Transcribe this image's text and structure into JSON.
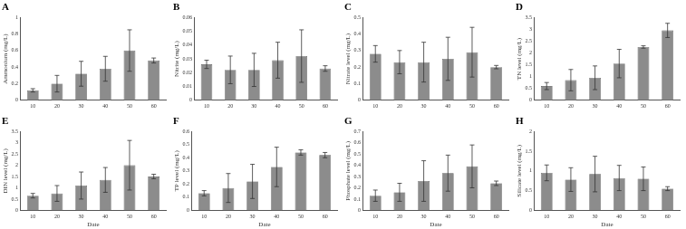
{
  "chart_data": [
    {
      "type": "bar",
      "title": "A",
      "y_label": "Ammonium (mg/L)",
      "categories": [
        "10",
        "20",
        "30",
        "40",
        "50",
        "60"
      ],
      "values": [
        0.12,
        0.2,
        0.32,
        0.38,
        0.6,
        0.48
      ],
      "errors": [
        0.02,
        0.1,
        0.15,
        0.15,
        0.25,
        0.03
      ],
      "color": "#8c8c8c",
      "ylim": [
        0,
        1
      ],
      "yticks": [
        0,
        0.2,
        0.4,
        0.6,
        0.8,
        1
      ],
      "grid": false
    },
    {
      "type": "bar",
      "title": "B",
      "y_label": "Nitrite (mg/L)",
      "categories": [
        "10",
        "20",
        "30",
        "40",
        "50",
        "60"
      ],
      "values": [
        0.026,
        0.022,
        0.022,
        0.029,
        0.032,
        0.023
      ],
      "errors": [
        0.003,
        0.01,
        0.012,
        0.013,
        0.019,
        0.002
      ],
      "color": "#8c8c8c",
      "ylim": [
        0,
        0.06
      ],
      "yticks": [
        0,
        0.01,
        0.02,
        0.03,
        0.04,
        0.05,
        0.06
      ],
      "grid": false
    },
    {
      "type": "bar",
      "title": "C",
      "y_label": "Nitrate level (mg/L)",
      "categories": [
        "10",
        "20",
        "30",
        "40",
        "50",
        "60"
      ],
      "values": [
        0.28,
        0.23,
        0.23,
        0.25,
        0.29,
        0.2
      ],
      "errors": [
        0.05,
        0.07,
        0.12,
        0.13,
        0.15,
        0.01
      ],
      "color": "#8c8c8c",
      "ylim": [
        0,
        0.5
      ],
      "yticks": [
        0,
        0.1,
        0.2,
        0.3,
        0.4,
        0.5
      ],
      "grid": false
    },
    {
      "type": "bar",
      "title": "D",
      "y_label": "TN level (mg/L)",
      "categories": [
        "10",
        "20",
        "30",
        "40",
        "50",
        "60"
      ],
      "values": [
        0.6,
        0.85,
        0.95,
        1.55,
        2.25,
        2.95
      ],
      "errors": [
        0.15,
        0.45,
        0.5,
        0.6,
        0.05,
        0.3
      ],
      "color": "#8c8c8c",
      "ylim": [
        0,
        3.5
      ],
      "yticks": [
        0,
        0.5,
        1,
        1.5,
        2,
        2.5,
        3,
        3.5
      ],
      "grid": false
    },
    {
      "type": "bar",
      "title": "E",
      "y_label": "DIN level (mg/L)",
      "x_label": "Date",
      "categories": [
        "10",
        "20",
        "30",
        "40",
        "50",
        "60"
      ],
      "values": [
        0.65,
        0.75,
        1.1,
        1.35,
        2.0,
        1.5
      ],
      "errors": [
        0.1,
        0.35,
        0.6,
        0.55,
        1.1,
        0.1
      ],
      "color": "#8c8c8c",
      "ylim": [
        0,
        3.5
      ],
      "yticks": [
        0,
        0.5,
        1,
        1.5,
        2,
        2.5,
        3,
        3.5
      ],
      "grid": false
    },
    {
      "type": "bar",
      "title": "F",
      "y_label": "TP level (mg/L)",
      "x_label": "Date",
      "categories": [
        "10",
        "20",
        "30",
        "40",
        "50",
        "60"
      ],
      "values": [
        0.13,
        0.17,
        0.22,
        0.33,
        0.44,
        0.42
      ],
      "errors": [
        0.02,
        0.11,
        0.13,
        0.15,
        0.02,
        0.02
      ],
      "color": "#8c8c8c",
      "ylim": [
        0,
        0.6
      ],
      "yticks": [
        0,
        0.1,
        0.2,
        0.3,
        0.4,
        0.5,
        0.6
      ],
      "grid": false
    },
    {
      "type": "bar",
      "title": "G",
      "y_label": "Phosphate level (mg/L)",
      "x_label": "Date",
      "categories": [
        "10",
        "20",
        "30",
        "40",
        "50",
        "60"
      ],
      "values": [
        0.13,
        0.16,
        0.26,
        0.33,
        0.39,
        0.24
      ],
      "errors": [
        0.05,
        0.08,
        0.18,
        0.16,
        0.19,
        0.02
      ],
      "color": "#8c8c8c",
      "ylim": [
        0,
        0.7
      ],
      "yticks": [
        0,
        0.1,
        0.2,
        0.3,
        0.4,
        0.5,
        0.6,
        0.7
      ],
      "grid": false
    },
    {
      "type": "bar",
      "title": "H",
      "y_label": "Silicate level (mg/L)",
      "x_label": "Date",
      "categories": [
        "10",
        "20",
        "30",
        "40",
        "50",
        "60"
      ],
      "values": [
        0.95,
        0.78,
        0.92,
        0.82,
        0.8,
        0.55
      ],
      "errors": [
        0.2,
        0.3,
        0.45,
        0.32,
        0.3,
        0.05
      ],
      "color": "#8c8c8c",
      "ylim": [
        0,
        2
      ],
      "yticks": [
        0,
        0.5,
        1,
        1.5,
        2
      ],
      "grid": false
    }
  ]
}
